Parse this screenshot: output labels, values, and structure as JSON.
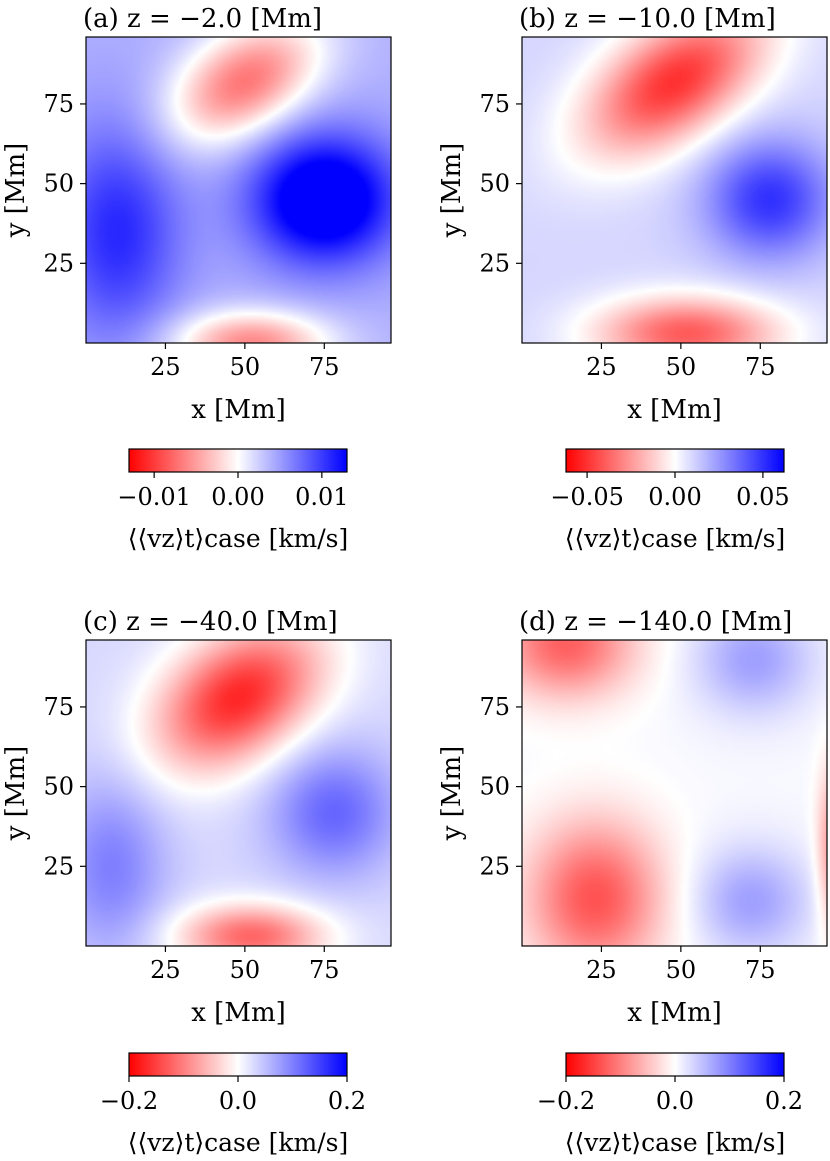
{
  "chart_data": [
    {
      "type": "heatmap",
      "title": "(a) z = −2.0 [Mm]",
      "xlabel": "x [Mm]",
      "ylabel": "y [Mm]",
      "xlim": [
        0,
        96
      ],
      "ylim": [
        0,
        96
      ],
      "xticks": [
        "25",
        "50",
        "75"
      ],
      "yticks": [
        "25",
        "50",
        "75"
      ],
      "colorbar": {
        "label": "⟨⟨vz⟩t⟩case [km/s]",
        "range": [
          -0.013,
          0.013
        ],
        "ticks": [
          "−0.01",
          "0.00",
          "0.01"
        ],
        "tick_values": [
          -0.01,
          0.0,
          0.01
        ],
        "colormap": "bwr_reversed"
      },
      "features": [
        {
          "kind": "negative (red) blob",
          "center": [
            50,
            82
          ],
          "peak": -0.011
        },
        {
          "kind": "negative (red) blob",
          "center": [
            52,
            0
          ],
          "peak": -0.01
        },
        {
          "kind": "positive (blue) blob",
          "center": [
            75,
            45
          ],
          "peak": 0.013
        },
        {
          "kind": "positive (blue) region",
          "center": [
            10,
            35
          ],
          "peak": 0.007
        }
      ]
    },
    {
      "type": "heatmap",
      "title": "(b) z = −10.0 [Mm]",
      "xlabel": "x [Mm]",
      "ylabel": "y [Mm]",
      "xlim": [
        0,
        96
      ],
      "ylim": [
        0,
        96
      ],
      "xticks": [
        "25",
        "50",
        "75"
      ],
      "yticks": [
        "25",
        "50",
        "75"
      ],
      "colorbar": {
        "label": "⟨⟨vz⟩t⟩case [km/s]",
        "range": [
          -0.062,
          0.062
        ],
        "ticks": [
          "−0.05",
          "0.00",
          "0.05"
        ],
        "tick_values": [
          -0.05,
          0.0,
          0.05
        ],
        "colormap": "bwr_reversed"
      },
      "features": [
        {
          "kind": "negative (red) blob",
          "center": [
            48,
            82
          ],
          "peak": -0.06
        },
        {
          "kind": "negative (red) blob",
          "center": [
            52,
            3
          ],
          "peak": -0.05
        },
        {
          "kind": "positive (blue) blob",
          "center": [
            78,
            45
          ],
          "peak": 0.04
        }
      ]
    },
    {
      "type": "heatmap",
      "title": "(c) z = −40.0 [Mm]",
      "xlabel": "x [Mm]",
      "ylabel": "y [Mm]",
      "xlim": [
        0,
        96
      ],
      "ylim": [
        0,
        96
      ],
      "xticks": [
        "25",
        "50",
        "75"
      ],
      "yticks": [
        "25",
        "50",
        "75"
      ],
      "colorbar": {
        "label": "⟨⟨vz⟩t⟩case [km/s]",
        "range": [
          -0.2,
          0.2
        ],
        "ticks": [
          "−0.2",
          "0.0",
          "0.2"
        ],
        "tick_values": [
          -0.2,
          0.0,
          0.2
        ],
        "colormap": "bwr_reversed"
      },
      "features": [
        {
          "kind": "negative (red) blob",
          "center": [
            48,
            78
          ],
          "peak": -0.2
        },
        {
          "kind": "negative (red) blob",
          "center": [
            52,
            3
          ],
          "peak": -0.15
        },
        {
          "kind": "positive (blue) blob",
          "center": [
            78,
            42
          ],
          "peak": 0.09
        },
        {
          "kind": "positive (blue) region",
          "center": [
            8,
            25
          ],
          "peak": 0.07
        }
      ]
    },
    {
      "type": "heatmap",
      "title": "(d) z = −140.0 [Mm]",
      "xlabel": "x [Mm]",
      "ylabel": "y [Mm]",
      "xlim": [
        0,
        96
      ],
      "ylim": [
        0,
        96
      ],
      "xticks": [
        "25",
        "50",
        "75"
      ],
      "yticks": [
        "25",
        "50",
        "75"
      ],
      "colorbar": {
        "label": "⟨⟨vz⟩t⟩case [km/s]",
        "range": [
          -0.2,
          0.2
        ],
        "ticks": [
          "−0.2",
          "0.0",
          "0.2"
        ],
        "tick_values": [
          -0.2,
          0.0,
          0.2
        ],
        "colormap": "bwr_reversed"
      },
      "features": [
        {
          "kind": "negative (red) blob",
          "center": [
            14,
            95
          ],
          "peak": -0.13
        },
        {
          "kind": "negative (red) blob",
          "center": [
            23,
            15
          ],
          "peak": -0.14
        },
        {
          "kind": "positive (blue) blob",
          "center": [
            73,
            90
          ],
          "peak": 0.07
        },
        {
          "kind": "positive (blue) blob",
          "center": [
            72,
            14
          ],
          "peak": 0.07
        },
        {
          "kind": "negative (red) edge",
          "center": [
            97,
            30
          ],
          "peak": -0.08
        }
      ]
    }
  ]
}
